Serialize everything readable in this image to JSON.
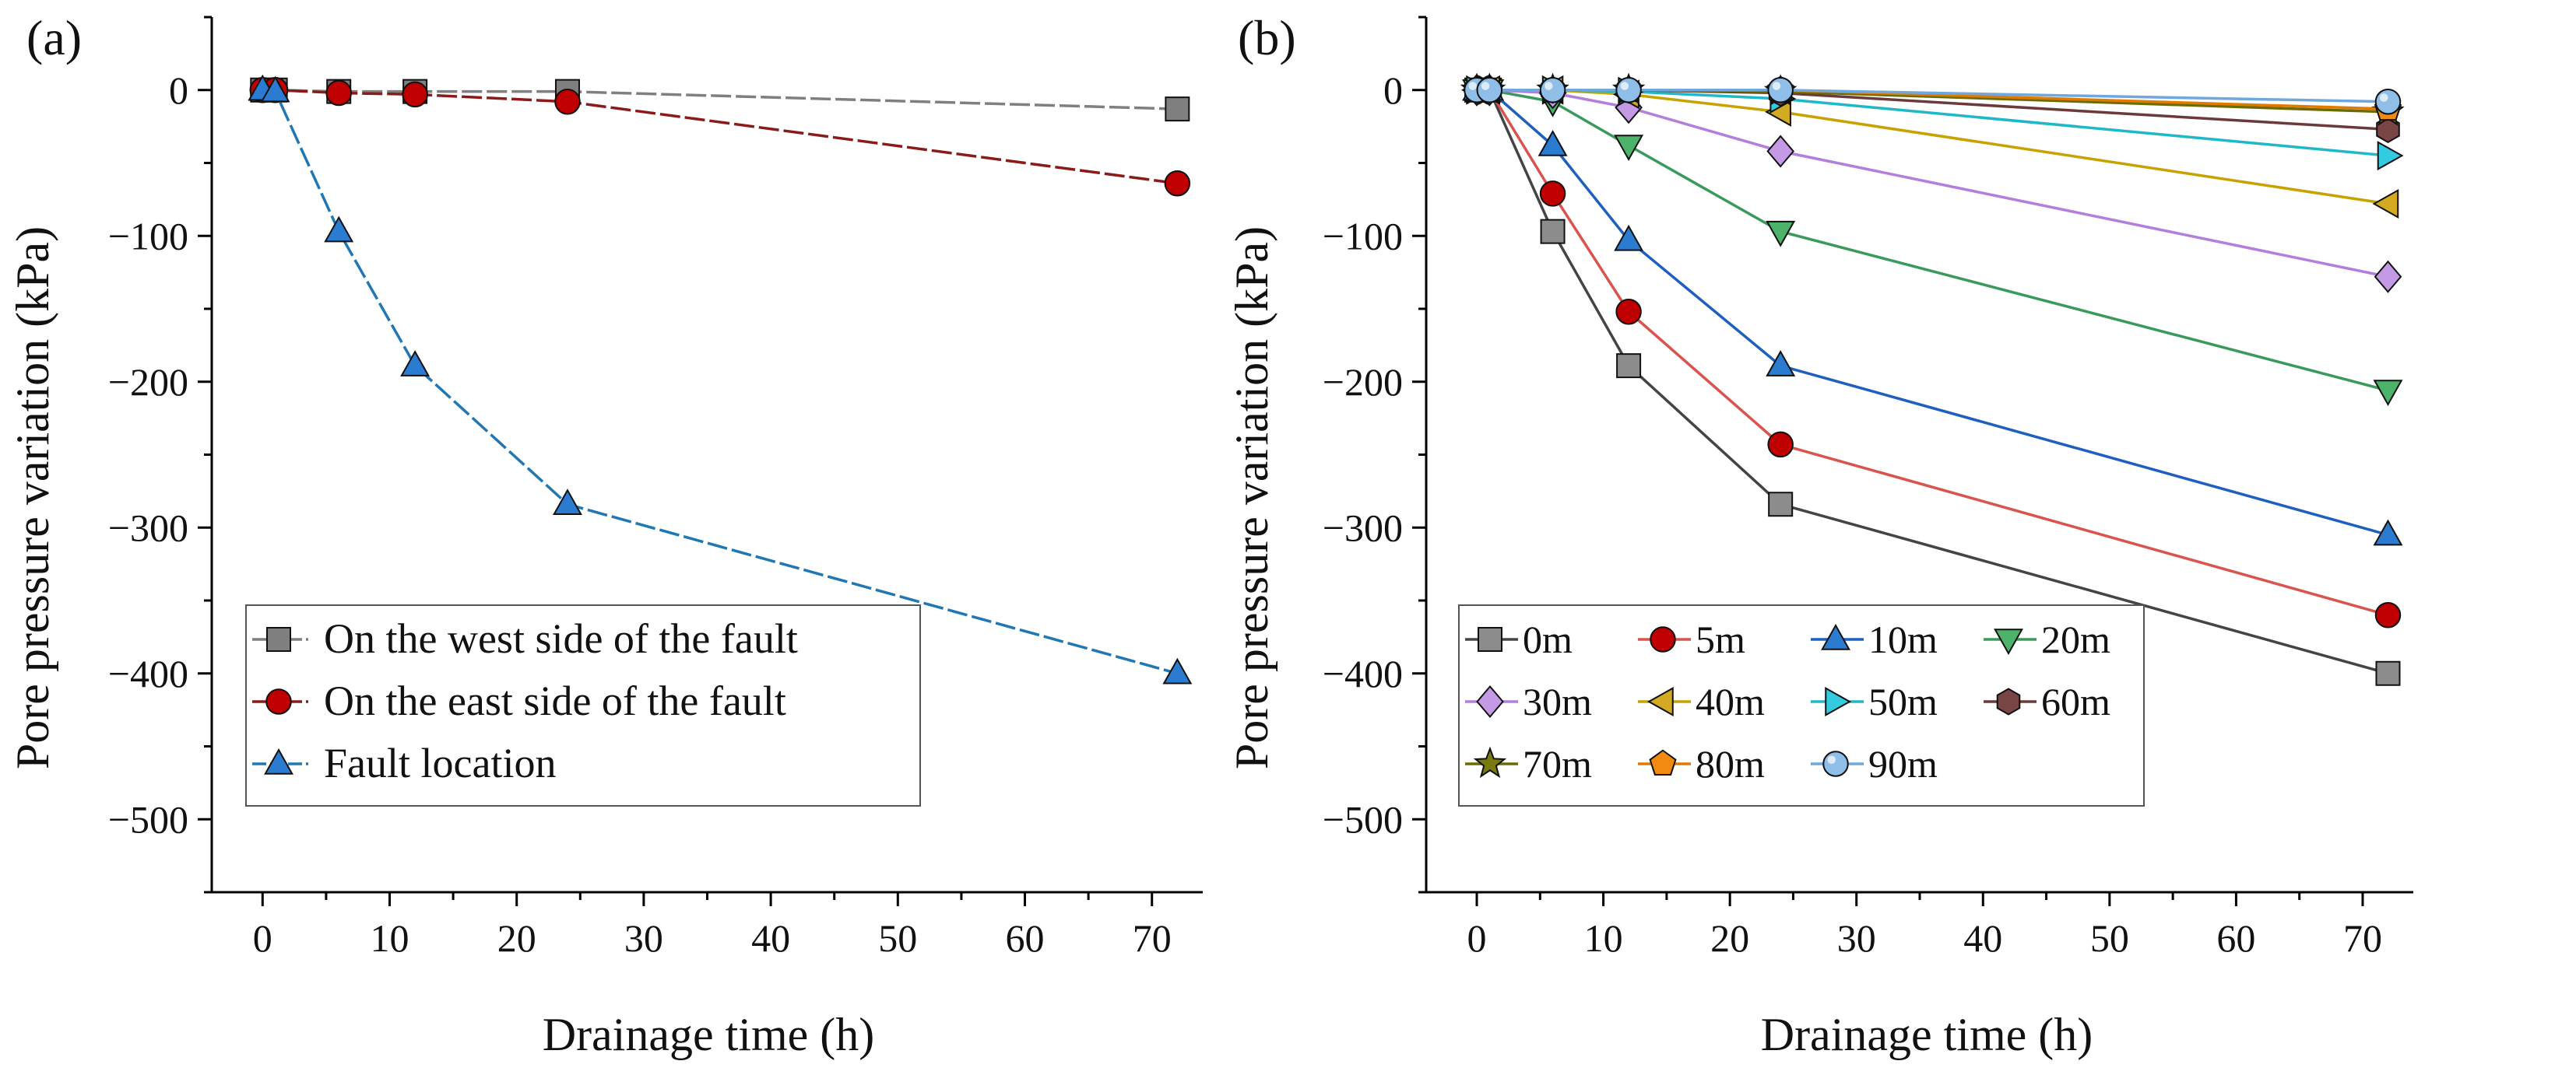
{
  "chart_data": [
    {
      "panel_label": "(a)",
      "type": "line",
      "xlabel": "Drainage time (h)",
      "ylabel": "Pore pressure variation (kPa)",
      "xlim": [
        -4,
        74
      ],
      "ylim": [
        -550,
        50
      ],
      "xticks": [
        0,
        10,
        20,
        30,
        40,
        50,
        60,
        70
      ],
      "yticks": [
        0,
        -100,
        -200,
        -300,
        -400,
        -500
      ],
      "ytick_labels": [
        "0",
        "−100",
        "−200",
        "−300",
        "−400",
        "−500"
      ],
      "legend_position": "bottom-left",
      "series": [
        {
          "name": "On the west side of the fault",
          "marker": "square",
          "color": "#7f7f7f",
          "markerColor": "#7f7f7f",
          "dash": true,
          "x": [
            0,
            1,
            6,
            12,
            24,
            72
          ],
          "y": [
            0,
            0,
            -1,
            -1,
            -1,
            -13
          ]
        },
        {
          "name": "On the east side of the fault",
          "marker": "circle",
          "color": "#8b1a1a",
          "markerColor": "#c00000",
          "dash": true,
          "x": [
            0,
            1,
            6,
            12,
            24,
            72
          ],
          "y": [
            0,
            0,
            -2,
            -3,
            -8,
            -64
          ]
        },
        {
          "name": "Fault location",
          "marker": "triangle-up",
          "color": "#1f77b4",
          "markerColor": "#2b7bd1",
          "dash": true,
          "x": [
            0,
            1,
            6,
            12,
            24,
            72
          ],
          "y": [
            0,
            -1,
            -97,
            -189,
            -284,
            -400
          ]
        }
      ]
    },
    {
      "panel_label": "(b)",
      "type": "line",
      "xlabel": "Drainage time (h)",
      "ylabel": "Pore pressure variation (kPa)",
      "xlim": [
        -4,
        74
      ],
      "ylim": [
        -550,
        50
      ],
      "xticks": [
        0,
        10,
        20,
        30,
        40,
        50,
        60,
        70
      ],
      "yticks": [
        0,
        -100,
        -200,
        -300,
        -400,
        -500
      ],
      "ytick_labels": [
        "0",
        "−100",
        "−200",
        "−300",
        "−400",
        "−500"
      ],
      "legend_position": "bottom-left",
      "series": [
        {
          "name": "0m",
          "marker": "square",
          "color": "#444444",
          "markerColor": "#8c8c8c",
          "x": [
            0,
            1,
            6,
            12,
            24,
            72
          ],
          "y": [
            0,
            0,
            -97,
            -189,
            -284,
            -400
          ]
        },
        {
          "name": "5m",
          "marker": "circle",
          "color": "#d9534f",
          "markerColor": "#c00000",
          "x": [
            0,
            1,
            6,
            12,
            24,
            72
          ],
          "y": [
            0,
            0,
            -71,
            -152,
            -243,
            -360
          ]
        },
        {
          "name": "10m",
          "marker": "triangle-up",
          "color": "#1f5fbf",
          "markerColor": "#2b7bd1",
          "x": [
            0,
            1,
            6,
            12,
            24,
            72
          ],
          "y": [
            0,
            0,
            -38,
            -103,
            -189,
            -305
          ]
        },
        {
          "name": "20m",
          "marker": "triangle-down",
          "color": "#3a9a5b",
          "markerColor": "#4db36b",
          "x": [
            0,
            1,
            6,
            12,
            24,
            72
          ],
          "y": [
            0,
            0,
            -8,
            -38,
            -97,
            -206
          ]
        },
        {
          "name": "30m",
          "marker": "diamond",
          "color": "#b27fdc",
          "markerColor": "#c49ae6",
          "x": [
            0,
            1,
            6,
            12,
            24,
            72
          ],
          "y": [
            0,
            0,
            -2,
            -12,
            -42,
            -128
          ]
        },
        {
          "name": "40m",
          "marker": "triangle-left",
          "color": "#c8a200",
          "markerColor": "#d4aa22",
          "x": [
            0,
            1,
            6,
            12,
            24,
            72
          ],
          "y": [
            0,
            0,
            0,
            -3,
            -15,
            -78
          ]
        },
        {
          "name": "50m",
          "marker": "triangle-right",
          "color": "#1fb8c8",
          "markerColor": "#33cbe0",
          "x": [
            0,
            1,
            6,
            12,
            24,
            72
          ],
          "y": [
            0,
            0,
            0,
            -1,
            -6,
            -45
          ]
        },
        {
          "name": "60m",
          "marker": "hexagon",
          "color": "#6b3a3a",
          "markerColor": "#7a4545",
          "x": [
            0,
            1,
            6,
            12,
            24,
            72
          ],
          "y": [
            0,
            0,
            0,
            0,
            -2,
            -27
          ]
        },
        {
          "name": "70m",
          "marker": "star",
          "color": "#6b6b00",
          "markerColor": "#7a7a10",
          "x": [
            0,
            1,
            6,
            12,
            24,
            72
          ],
          "y": [
            0,
            0,
            0,
            0,
            -1,
            -15
          ]
        },
        {
          "name": "80m",
          "marker": "pentagon",
          "color": "#e07b00",
          "markerColor": "#f08a10",
          "x": [
            0,
            1,
            6,
            12,
            24,
            72
          ],
          "y": [
            0,
            0,
            0,
            0,
            0,
            -13
          ]
        },
        {
          "name": "90m",
          "marker": "sphere",
          "color": "#6fa8dc",
          "markerColor": "#8fbfe8",
          "x": [
            0,
            1,
            6,
            12,
            24,
            72
          ],
          "y": [
            0,
            0,
            0,
            0,
            0,
            -8
          ]
        }
      ]
    }
  ]
}
